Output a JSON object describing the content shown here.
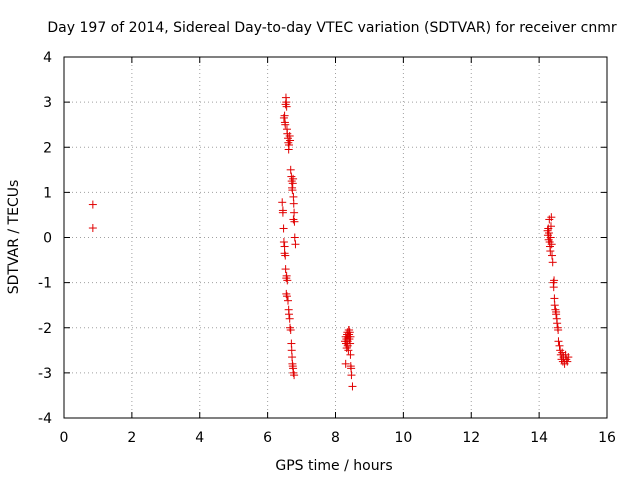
{
  "chart_data": {
    "type": "scatter",
    "title": "Day 197 of 2014, Sidereal Day-to-day VTEC variation (SDTVAR) for receiver cnmr",
    "xlabel": "GPS time / hours",
    "ylabel": "SDTVAR / TECUs",
    "xlim": [
      0,
      16
    ],
    "ylim": [
      -4,
      4
    ],
    "xticks": [
      0,
      2,
      4,
      6,
      8,
      10,
      12,
      14,
      16
    ],
    "yticks": [
      -4,
      -3,
      -2,
      -1,
      0,
      1,
      2,
      3,
      4
    ],
    "grid": true,
    "marker": "+",
    "color": "#e00000",
    "series": [
      {
        "name": "SDTVAR",
        "points": [
          [
            0.85,
            0.73
          ],
          [
            0.85,
            0.21
          ],
          [
            6.43,
            0.78
          ],
          [
            6.45,
            0.6
          ],
          [
            6.45,
            0.55
          ],
          [
            6.47,
            0.2
          ],
          [
            6.48,
            -0.1
          ],
          [
            6.5,
            -0.2
          ],
          [
            6.5,
            -0.35
          ],
          [
            6.52,
            -0.4
          ],
          [
            6.53,
            -0.7
          ],
          [
            6.55,
            -0.9
          ],
          [
            6.56,
            -0.85
          ],
          [
            6.58,
            -0.95
          ],
          [
            6.55,
            -1.25
          ],
          [
            6.57,
            -1.3
          ],
          [
            6.6,
            -1.4
          ],
          [
            6.62,
            -1.6
          ],
          [
            6.63,
            -1.7
          ],
          [
            6.65,
            -1.8
          ],
          [
            6.66,
            -2.0
          ],
          [
            6.68,
            -2.05
          ],
          [
            6.7,
            -2.35
          ],
          [
            6.71,
            -2.5
          ],
          [
            6.72,
            -2.65
          ],
          [
            6.73,
            -2.8
          ],
          [
            6.75,
            -2.9
          ],
          [
            6.76,
            -3.0
          ],
          [
            6.78,
            -3.05
          ],
          [
            6.74,
            -2.85
          ],
          [
            6.48,
            2.65
          ],
          [
            6.5,
            2.7
          ],
          [
            6.51,
            2.55
          ],
          [
            6.52,
            2.5
          ],
          [
            6.53,
            2.95
          ],
          [
            6.54,
            3.1
          ],
          [
            6.55,
            3.0
          ],
          [
            6.56,
            2.9
          ],
          [
            6.57,
            2.4
          ],
          [
            6.58,
            2.3
          ],
          [
            6.6,
            2.2
          ],
          [
            6.61,
            2.1
          ],
          [
            6.62,
            1.95
          ],
          [
            6.63,
            2.05
          ],
          [
            6.65,
            2.25
          ],
          [
            6.66,
            2.15
          ],
          [
            6.68,
            1.5
          ],
          [
            6.7,
            1.35
          ],
          [
            6.71,
            1.25
          ],
          [
            6.72,
            1.1
          ],
          [
            6.73,
            1.05
          ],
          [
            6.74,
            1.2
          ],
          [
            6.75,
            1.3
          ],
          [
            6.76,
            0.9
          ],
          [
            6.77,
            0.75
          ],
          [
            6.78,
            0.55
          ],
          [
            6.79,
            0.35
          ],
          [
            6.8,
            0.0
          ],
          [
            6.82,
            -0.15
          ],
          [
            6.76,
            0.4
          ],
          [
            8.28,
            -2.3
          ],
          [
            8.3,
            -2.2
          ],
          [
            8.31,
            -2.35
          ],
          [
            8.32,
            -2.25
          ],
          [
            8.33,
            -2.45
          ],
          [
            8.34,
            -2.15
          ],
          [
            8.35,
            -2.1
          ],
          [
            8.36,
            -2.3
          ],
          [
            8.37,
            -2.2
          ],
          [
            8.38,
            -2.5
          ],
          [
            8.39,
            -2.05
          ],
          [
            8.4,
            -2.15
          ],
          [
            8.41,
            -2.25
          ],
          [
            8.42,
            -2.1
          ],
          [
            8.43,
            -2.35
          ],
          [
            8.44,
            -2.6
          ],
          [
            8.45,
            -2.85
          ],
          [
            8.46,
            -2.9
          ],
          [
            8.47,
            -3.05
          ],
          [
            8.5,
            -3.3
          ],
          [
            8.3,
            -2.8
          ],
          [
            8.36,
            -2.4
          ],
          [
            8.4,
            -2.05
          ],
          [
            8.44,
            -2.2
          ],
          [
            14.25,
            0.15
          ],
          [
            14.26,
            0.05
          ],
          [
            14.27,
            0.2
          ],
          [
            14.28,
            -0.05
          ],
          [
            14.29,
            0.1
          ],
          [
            14.3,
            0.4
          ],
          [
            14.31,
            -0.1
          ],
          [
            14.32,
            -0.2
          ],
          [
            14.33,
            -0.3
          ],
          [
            14.34,
            0.0
          ],
          [
            14.35,
            0.25
          ],
          [
            14.36,
            0.45
          ],
          [
            14.37,
            -0.15
          ],
          [
            14.38,
            -0.4
          ],
          [
            14.4,
            -0.55
          ],
          [
            14.42,
            -1.0
          ],
          [
            14.44,
            -0.95
          ],
          [
            14.45,
            -1.35
          ],
          [
            14.46,
            -1.5
          ],
          [
            14.48,
            -1.6
          ],
          [
            14.5,
            -1.7
          ],
          [
            14.52,
            -1.8
          ],
          [
            14.53,
            -1.9
          ],
          [
            14.55,
            -2.0
          ],
          [
            14.57,
            -2.3
          ],
          [
            14.6,
            -2.4
          ],
          [
            14.62,
            -2.5
          ],
          [
            14.64,
            -2.6
          ],
          [
            14.66,
            -2.7
          ],
          [
            14.68,
            -2.55
          ],
          [
            14.7,
            -2.75
          ],
          [
            14.72,
            -2.65
          ],
          [
            14.75,
            -2.8
          ],
          [
            14.78,
            -2.6
          ],
          [
            14.8,
            -2.7
          ],
          [
            14.83,
            -2.75
          ],
          [
            14.86,
            -2.65
          ],
          [
            14.5,
            -1.65
          ],
          [
            14.56,
            -2.05
          ],
          [
            14.43,
            -1.1
          ]
        ]
      }
    ]
  }
}
